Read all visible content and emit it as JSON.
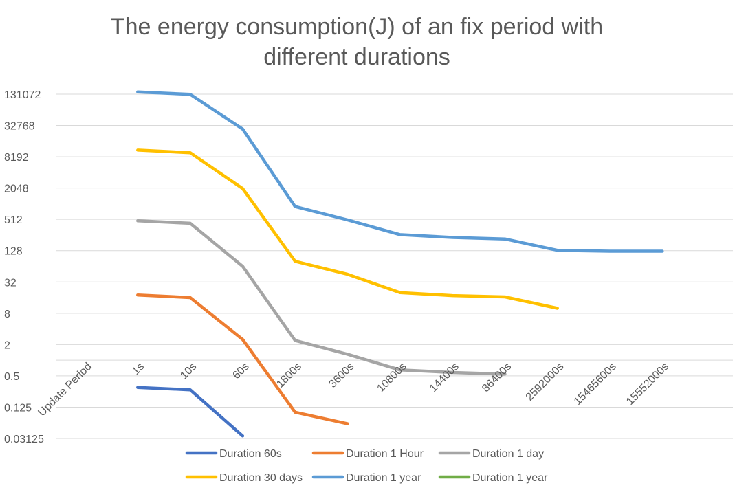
{
  "chart_data": {
    "type": "line",
    "title_lines": [
      "The energy consumption(J) of an fix period with",
      "different durations"
    ],
    "xlabel": "",
    "ylabel": "",
    "y_scale": "log2",
    "ylim": [
      0.03125,
      262144
    ],
    "y_ticks": [
      "131072",
      "32768",
      "8192",
      "2048",
      "512",
      "128",
      "32",
      "8",
      "2",
      "0.5",
      "0.125",
      "0.03125"
    ],
    "y_tick_values": [
      131072,
      32768,
      8192,
      2048,
      512,
      128,
      32,
      8,
      2,
      0.5,
      0.125,
      0.03125
    ],
    "categories": [
      "Update Period",
      "1s",
      "10s",
      "60s",
      "1800s",
      "3600s",
      "10800s",
      "14400s",
      "86400s",
      "2592000s",
      "15465600s",
      "15552000s"
    ],
    "grid": true,
    "legend_position": "bottom",
    "series": [
      {
        "name": "Duration 60s",
        "color": "#4472C4",
        "values": [
          null,
          0.3,
          0.27,
          0.035,
          null,
          null,
          null,
          null,
          null,
          null,
          null,
          null
        ]
      },
      {
        "name": "Duration 1 Hour",
        "color": "#ED7D31",
        "values": [
          null,
          18,
          16,
          2.5,
          0.1,
          0.06,
          null,
          null,
          null,
          null,
          null,
          null
        ]
      },
      {
        "name": "Duration 1 day",
        "color": "#A5A5A5",
        "values": [
          null,
          480,
          430,
          64,
          2.4,
          1.3,
          0.65,
          0.58,
          0.54,
          null,
          null,
          null
        ]
      },
      {
        "name": "Duration 30 days",
        "color": "#FFC000",
        "values": [
          null,
          11000,
          9800,
          2000,
          80,
          45,
          20,
          17.5,
          16.5,
          10,
          null,
          null
        ]
      },
      {
        "name": "Duration 1 year",
        "color": "#5B9BD5",
        "values": [
          null,
          145000,
          130000,
          28000,
          900,
          500,
          260,
          230,
          215,
          130,
          125,
          125
        ]
      },
      {
        "name": "Duration 1 year",
        "color": "#70AD47",
        "values": [
          null,
          null,
          null,
          null,
          null,
          null,
          null,
          null,
          null,
          null,
          null,
          null
        ]
      }
    ]
  }
}
